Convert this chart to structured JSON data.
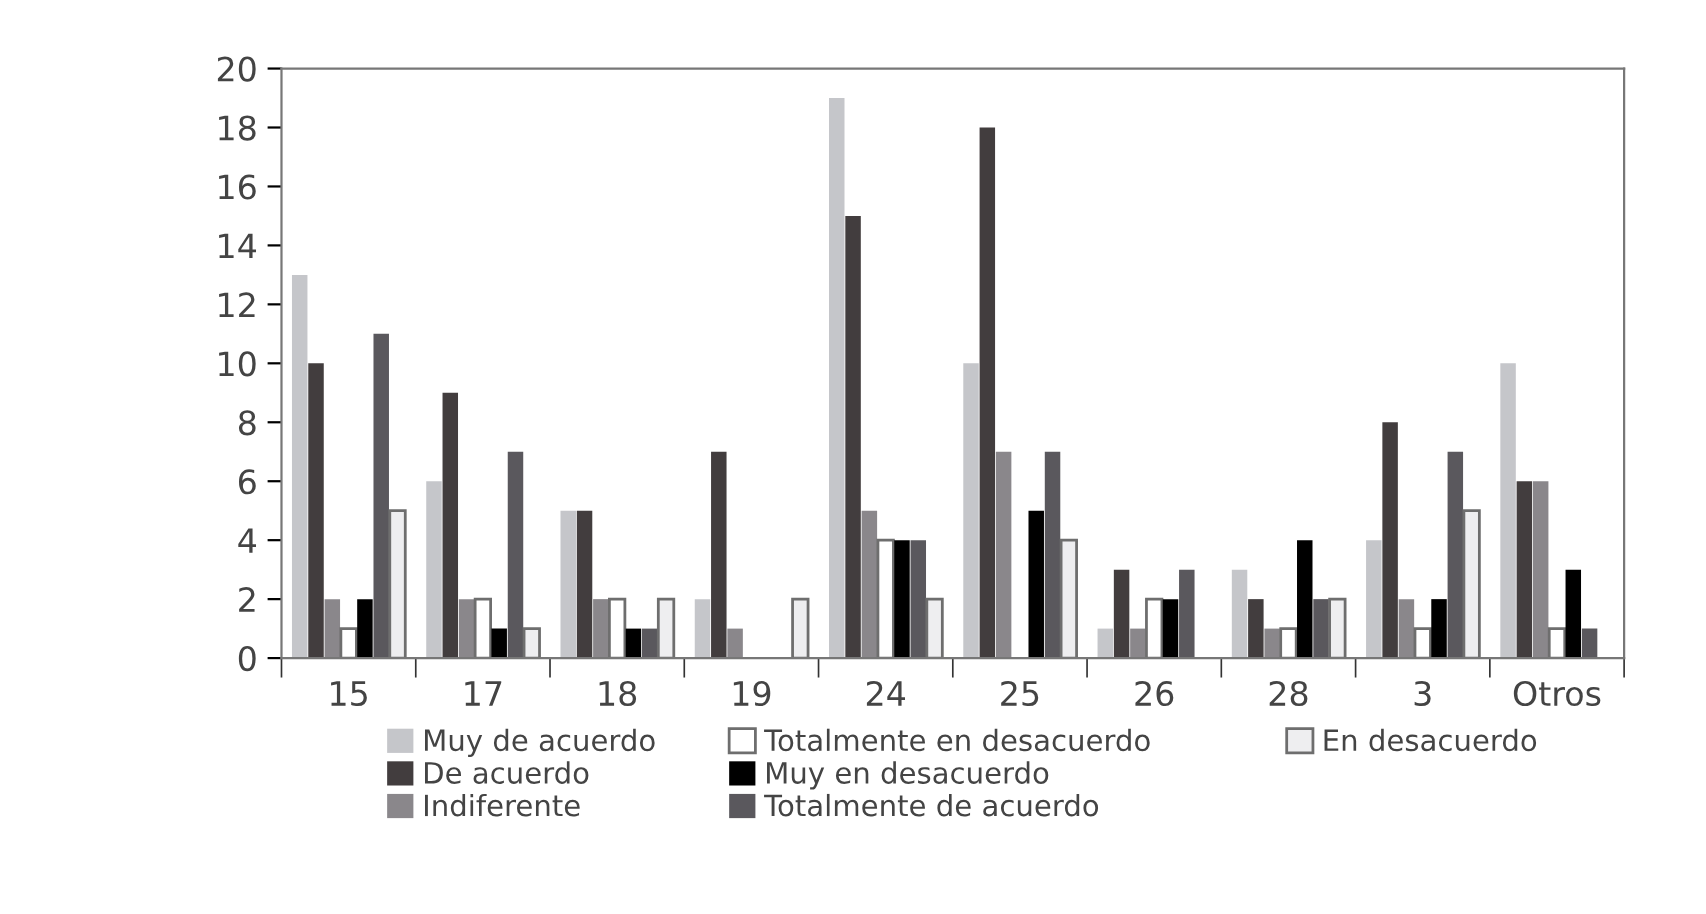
{
  "chart_data": {
    "type": "bar",
    "categories": [
      "15",
      "17",
      "18",
      "19",
      "24",
      "25",
      "26",
      "28",
      "3",
      "Otros"
    ],
    "series": [
      {
        "name": "Muy de acuerdo",
        "color": "#c5c6ca",
        "values": [
          13,
          6,
          5,
          2,
          19,
          10,
          1,
          3,
          4,
          10
        ]
      },
      {
        "name": "De acuerdo",
        "color": "#423d3e",
        "values": [
          10,
          9,
          5,
          7,
          15,
          18,
          3,
          2,
          8,
          6
        ]
      },
      {
        "name": "Indiferente",
        "color": "#8a878b",
        "values": [
          2,
          2,
          2,
          1,
          5,
          7,
          1,
          1,
          2,
          6
        ]
      },
      {
        "name": "Totalmente en desacuerdo",
        "color": "#ffffff",
        "values": [
          1,
          2,
          2,
          0,
          4,
          0,
          2,
          1,
          1,
          1
        ]
      },
      {
        "name": "Muy en desacuerdo",
        "color": "#000000",
        "values": [
          2,
          1,
          1,
          0,
          4,
          5,
          2,
          4,
          2,
          3
        ]
      },
      {
        "name": "Totalmente de acuerdo",
        "color": "#5a585d",
        "values": [
          11,
          7,
          1,
          0,
          4,
          7,
          3,
          2,
          7,
          1
        ]
      },
      {
        "name": "En desacuerdo",
        "color": "#eeeef0",
        "values": [
          5,
          1,
          2,
          2,
          2,
          4,
          0,
          2,
          5,
          0
        ]
      }
    ],
    "ylim": [
      0,
      20
    ],
    "yticks": [
      0,
      2,
      4,
      6,
      8,
      10,
      12,
      14,
      16,
      18,
      20
    ],
    "grid": false,
    "legend": "bottom"
  }
}
